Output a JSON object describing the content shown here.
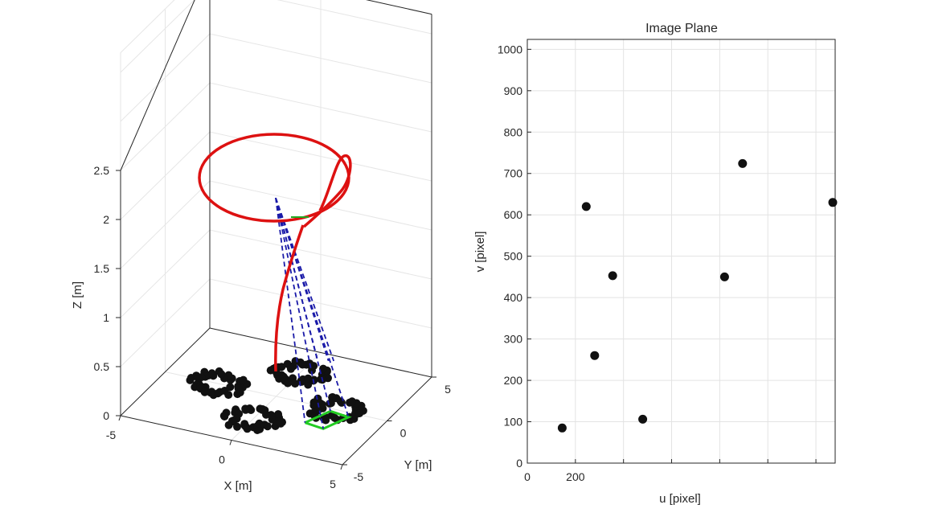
{
  "chart_data": [
    {
      "type": "scatter3d",
      "title": "",
      "xlabel": "X [m]",
      "ylabel": "Y [m]",
      "zlabel": "Z [m]",
      "xlim": [
        -5,
        5
      ],
      "ylim": [
        -5,
        5
      ],
      "zlim": [
        0,
        2.5
      ],
      "x_ticks": [
        "-5",
        "0",
        "5"
      ],
      "y_ticks": [
        "-5",
        "0",
        "5"
      ],
      "z_ticks": [
        "0",
        "0.5",
        "1",
        "1.5",
        "2",
        "2.5"
      ],
      "grid": true,
      "colors": {
        "points": "#111111",
        "trajectory": "#dd1111",
        "field_of_view": "#1a1aa8",
        "camera_footprint": "#22cc22"
      },
      "point_rings": [
        {
          "center_x": -2.6,
          "center_y": 0.0,
          "radius": 1.25,
          "count": 42
        },
        {
          "center_x": 2.6,
          "center_y": 0.0,
          "radius": 1.25,
          "count": 42
        },
        {
          "center_x": 0.0,
          "center_y": 2.6,
          "radius": 1.25,
          "count": 42
        },
        {
          "center_x": 0.0,
          "center_y": -2.6,
          "radius": 1.25,
          "count": 42
        }
      ],
      "trajectory": {
        "circle_center": [
          -2.8,
          2.3
        ],
        "circle_radius": 2.6,
        "z": 2.1,
        "tail": [
          [
            -0.1,
            0.2,
            2.0
          ],
          [
            0.3,
            0.5,
            1.5
          ],
          [
            0.6,
            0.7,
            1.0
          ],
          [
            0.8,
            0.8,
            0.5
          ]
        ]
      },
      "camera_position": [
        -0.1,
        0.2,
        2.0
      ],
      "footprint": [
        [
          2.05,
          -1.85
        ],
        [
          2.55,
          -0.25
        ],
        [
          3.45,
          -0.45
        ],
        [
          2.95,
          -2.05
        ]
      ]
    },
    {
      "type": "scatter",
      "title": "Image Plane",
      "xlabel": "u [pixel]",
      "ylabel": "v [pixel]",
      "xlim": [
        0,
        1280
      ],
      "ylim": [
        0,
        1024
      ],
      "x_ticks": [
        0,
        200
      ],
      "y_ticks": [
        0,
        100,
        200,
        300,
        400,
        500,
        600,
        700,
        800,
        900,
        1000
      ],
      "grid": true,
      "points": [
        {
          "x": 145,
          "y": 85
        },
        {
          "x": 245,
          "y": 620
        },
        {
          "x": 280,
          "y": 260
        },
        {
          "x": 355,
          "y": 453
        },
        {
          "x": 480,
          "y": 106
        },
        {
          "x": 820,
          "y": 450
        },
        {
          "x": 895,
          "y": 724
        },
        {
          "x": 1270,
          "y": 630
        }
      ]
    }
  ]
}
